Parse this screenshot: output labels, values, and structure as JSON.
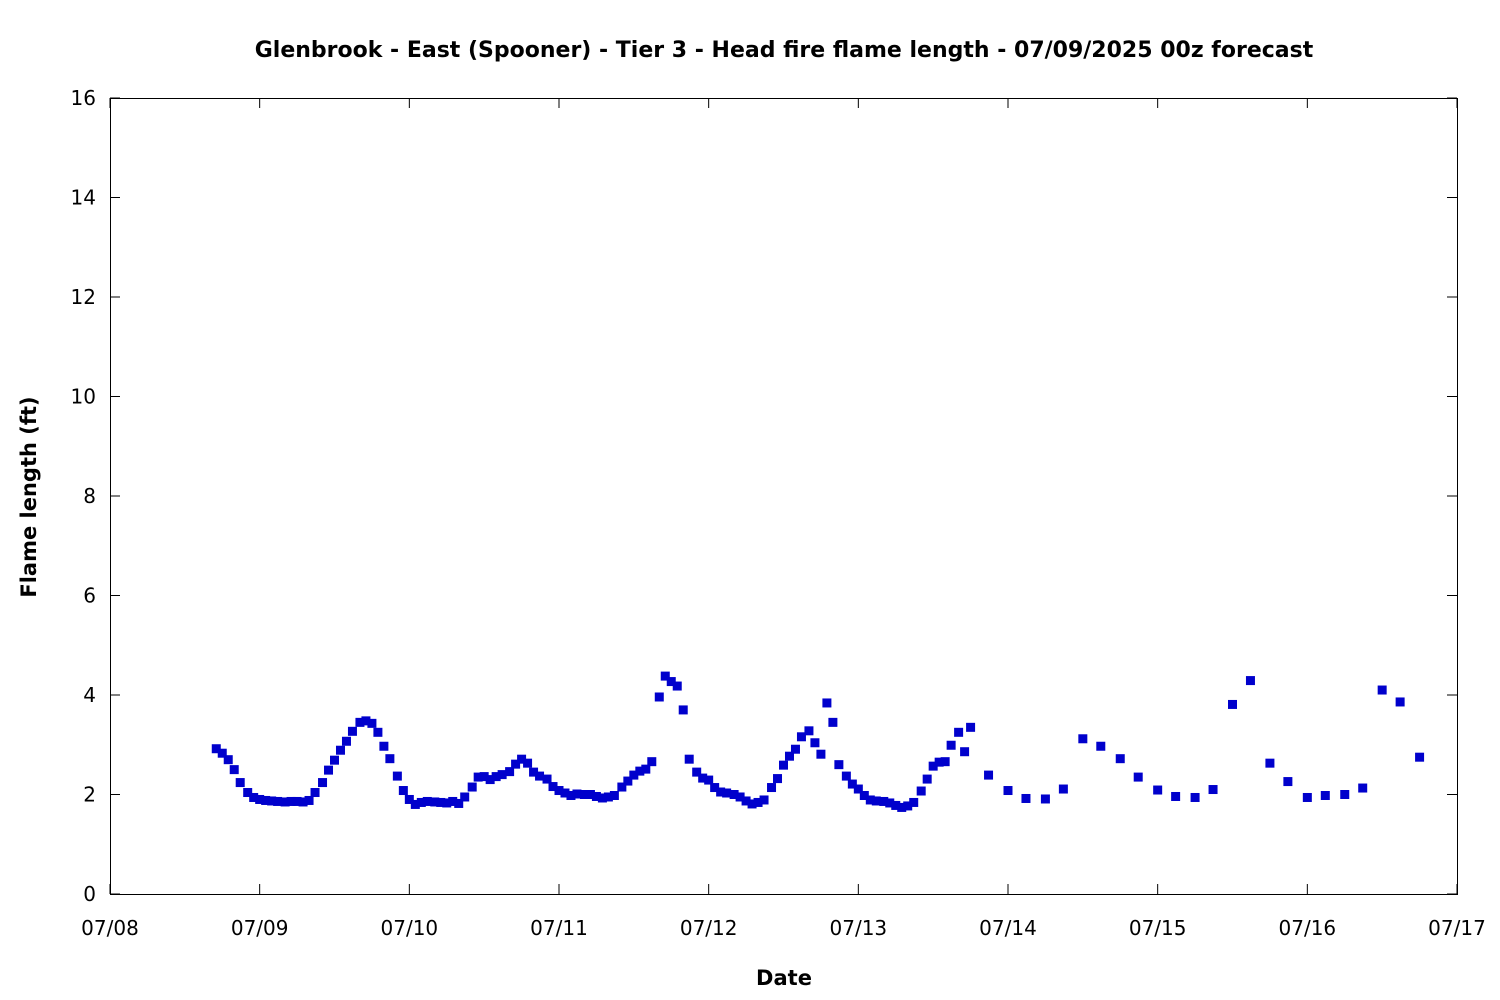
{
  "chart_data": {
    "type": "scatter",
    "title": "Glenbrook - East (Spooner) - Tier 3 - Head fire flame length - 07/09/2025 00z forecast",
    "xlabel": "Date",
    "ylabel": "Flame length (ft)",
    "xlim": [
      "07/08",
      "07/17"
    ],
    "ylim": [
      0,
      16
    ],
    "x_ticks": [
      "07/08",
      "07/09",
      "07/10",
      "07/11",
      "07/12",
      "07/13",
      "07/14",
      "07/15",
      "07/16",
      "07/17"
    ],
    "y_ticks": [
      0,
      2,
      4,
      6,
      8,
      10,
      12,
      14,
      16
    ],
    "grid": false,
    "marker_color": "#0000cc",
    "marker": "square",
    "x_units": "day (0 = 07/08)",
    "points": [
      [
        0.71,
        2.92
      ],
      [
        0.75,
        2.83
      ],
      [
        0.79,
        2.7
      ],
      [
        0.83,
        2.5
      ],
      [
        0.87,
        2.24
      ],
      [
        0.92,
        2.04
      ],
      [
        0.96,
        1.94
      ],
      [
        1.0,
        1.9
      ],
      [
        1.04,
        1.88
      ],
      [
        1.08,
        1.87
      ],
      [
        1.12,
        1.86
      ],
      [
        1.17,
        1.85
      ],
      [
        1.21,
        1.86
      ],
      [
        1.25,
        1.86
      ],
      [
        1.29,
        1.85
      ],
      [
        1.33,
        1.88
      ],
      [
        1.37,
        2.04
      ],
      [
        1.42,
        2.24
      ],
      [
        1.46,
        2.49
      ],
      [
        1.5,
        2.69
      ],
      [
        1.54,
        2.89
      ],
      [
        1.58,
        3.07
      ],
      [
        1.62,
        3.27
      ],
      [
        1.67,
        3.45
      ],
      [
        1.71,
        3.48
      ],
      [
        1.75,
        3.43
      ],
      [
        1.79,
        3.25
      ],
      [
        1.83,
        2.97
      ],
      [
        1.87,
        2.72
      ],
      [
        1.92,
        2.37
      ],
      [
        1.96,
        2.08
      ],
      [
        2.0,
        1.9
      ],
      [
        2.04,
        1.8
      ],
      [
        2.08,
        1.84
      ],
      [
        2.12,
        1.86
      ],
      [
        2.17,
        1.85
      ],
      [
        2.21,
        1.84
      ],
      [
        2.25,
        1.83
      ],
      [
        2.29,
        1.86
      ],
      [
        2.33,
        1.82
      ],
      [
        2.37,
        1.95
      ],
      [
        2.42,
        2.15
      ],
      [
        2.46,
        2.35
      ],
      [
        2.5,
        2.36
      ],
      [
        2.54,
        2.3
      ],
      [
        2.58,
        2.36
      ],
      [
        2.62,
        2.4
      ],
      [
        2.67,
        2.46
      ],
      [
        2.71,
        2.61
      ],
      [
        2.75,
        2.71
      ],
      [
        2.79,
        2.63
      ],
      [
        2.83,
        2.45
      ],
      [
        2.87,
        2.37
      ],
      [
        2.92,
        2.31
      ],
      [
        2.96,
        2.16
      ],
      [
        3.0,
        2.08
      ],
      [
        3.04,
        2.03
      ],
      [
        3.08,
        1.98
      ],
      [
        3.12,
        2.01
      ],
      [
        3.17,
        2.0
      ],
      [
        3.21,
        2.0
      ],
      [
        3.25,
        1.96
      ],
      [
        3.29,
        1.93
      ],
      [
        3.33,
        1.95
      ],
      [
        3.37,
        1.98
      ],
      [
        3.42,
        2.15
      ],
      [
        3.46,
        2.27
      ],
      [
        3.5,
        2.39
      ],
      [
        3.54,
        2.47
      ],
      [
        3.58,
        2.51
      ],
      [
        3.62,
        2.66
      ],
      [
        3.67,
        3.96
      ],
      [
        3.71,
        4.38
      ],
      [
        3.75,
        4.27
      ],
      [
        3.79,
        4.18
      ],
      [
        3.83,
        3.7
      ],
      [
        3.87,
        2.71
      ],
      [
        3.92,
        2.45
      ],
      [
        3.96,
        2.33
      ],
      [
        4.0,
        2.29
      ],
      [
        4.04,
        2.14
      ],
      [
        4.08,
        2.05
      ],
      [
        4.12,
        2.03
      ],
      [
        4.17,
        2.0
      ],
      [
        4.21,
        1.95
      ],
      [
        4.25,
        1.87
      ],
      [
        4.29,
        1.81
      ],
      [
        4.33,
        1.84
      ],
      [
        4.37,
        1.89
      ],
      [
        4.42,
        2.14
      ],
      [
        4.46,
        2.32
      ],
      [
        4.5,
        2.59
      ],
      [
        4.54,
        2.77
      ],
      [
        4.58,
        2.91
      ],
      [
        4.62,
        3.16
      ],
      [
        4.67,
        3.28
      ],
      [
        4.71,
        3.04
      ],
      [
        4.75,
        2.81
      ],
      [
        4.79,
        3.84
      ],
      [
        4.83,
        3.45
      ],
      [
        4.87,
        2.6
      ],
      [
        4.92,
        2.37
      ],
      [
        4.96,
        2.21
      ],
      [
        5.0,
        2.11
      ],
      [
        5.04,
        1.98
      ],
      [
        5.08,
        1.89
      ],
      [
        5.12,
        1.87
      ],
      [
        5.17,
        1.86
      ],
      [
        5.21,
        1.83
      ],
      [
        5.25,
        1.78
      ],
      [
        5.29,
        1.74
      ],
      [
        5.33,
        1.77
      ],
      [
        5.37,
        1.84
      ],
      [
        5.42,
        2.07
      ],
      [
        5.46,
        2.31
      ],
      [
        5.5,
        2.57
      ],
      [
        5.54,
        2.65
      ],
      [
        5.58,
        2.66
      ],
      [
        5.62,
        2.99
      ],
      [
        5.67,
        3.25
      ],
      [
        5.71,
        2.86
      ],
      [
        5.75,
        3.35
      ],
      [
        5.87,
        2.39
      ],
      [
        6.0,
        2.08
      ],
      [
        6.12,
        1.92
      ],
      [
        6.25,
        1.91
      ],
      [
        6.37,
        2.11
      ],
      [
        6.5,
        3.12
      ],
      [
        6.62,
        2.97
      ],
      [
        6.75,
        2.72
      ],
      [
        6.87,
        2.35
      ],
      [
        7.0,
        2.09
      ],
      [
        7.12,
        1.96
      ],
      [
        7.25,
        1.94
      ],
      [
        7.37,
        2.1
      ],
      [
        7.5,
        3.81
      ],
      [
        7.62,
        4.29
      ],
      [
        7.75,
        2.63
      ],
      [
        7.87,
        2.26
      ],
      [
        8.0,
        1.94
      ],
      [
        8.12,
        1.98
      ],
      [
        8.25,
        2.0
      ],
      [
        8.37,
        2.13
      ],
      [
        8.5,
        4.1
      ],
      [
        8.62,
        3.86
      ],
      [
        8.75,
        2.75
      ]
    ]
  }
}
